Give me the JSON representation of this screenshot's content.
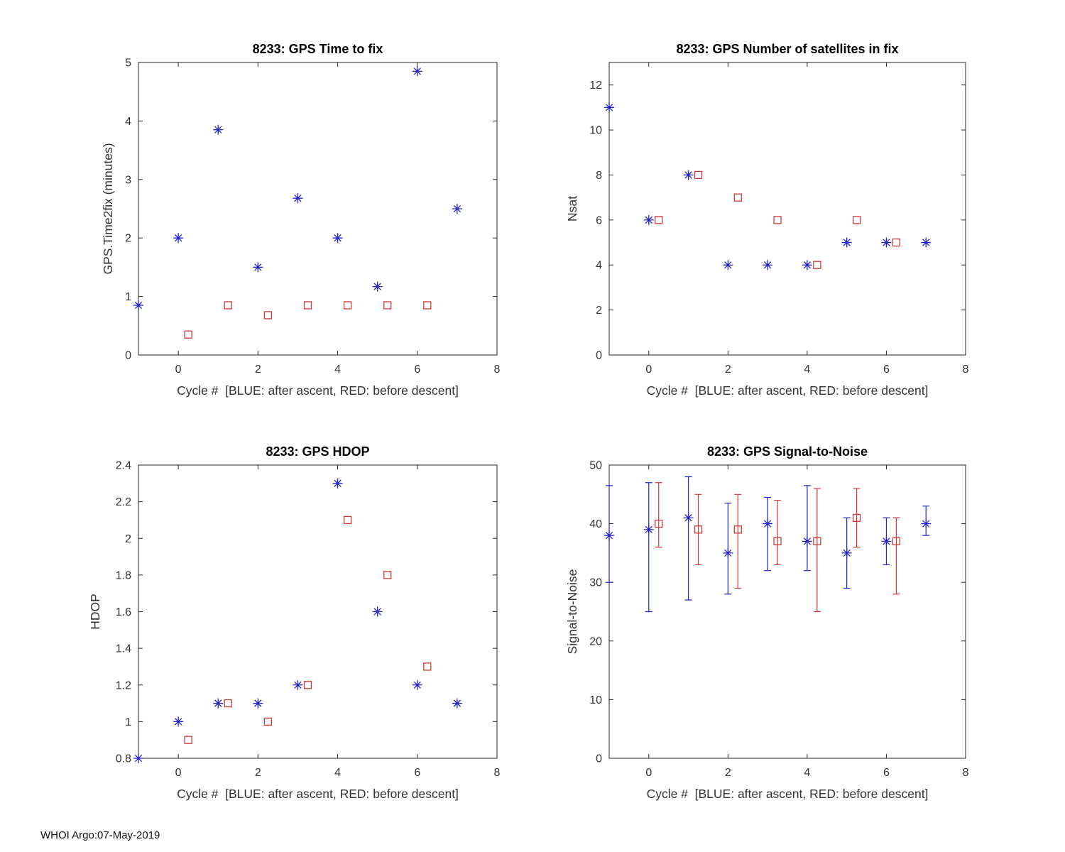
{
  "figure": {
    "footer": "WHOI Argo:07-May-2019",
    "background": "#ffffff"
  },
  "colors": {
    "blue": "#2222cc",
    "red": "#cc3a3a",
    "axis": "#262626",
    "tick_text": "#333333",
    "title_text": "#000000"
  },
  "chart_data": [
    {
      "id": "gps-time-to-fix",
      "type": "scatter",
      "title": "8233: GPS Time to fix",
      "xlabel": "Cycle #  [BLUE: after ascent, RED: before descent]",
      "ylabel": "GPS.Time2fix (minutes)",
      "xlim": [
        -1,
        8
      ],
      "ylim": [
        0,
        5
      ],
      "xticks": [
        0,
        2,
        4,
        6,
        8
      ],
      "xtick_labels": [
        "0",
        "2",
        "4",
        "6",
        "8"
      ],
      "yticks": [
        0,
        1,
        2,
        3,
        4,
        5
      ],
      "ytick_labels": [
        "0",
        "1",
        "2",
        "3",
        "4",
        "5"
      ],
      "grid": false,
      "series": [
        {
          "name": "after-ascent",
          "color_key": "blue",
          "marker": "asterisk",
          "x": [
            -1,
            0,
            1,
            2,
            3,
            4,
            5,
            6,
            7
          ],
          "y": [
            0.85,
            2.0,
            3.85,
            1.5,
            2.68,
            2.0,
            1.17,
            4.85,
            2.5
          ]
        },
        {
          "name": "before-descent",
          "color_key": "red",
          "marker": "square",
          "x": [
            0.25,
            1.25,
            2.25,
            3.25,
            4.25,
            5.25,
            6.25
          ],
          "y": [
            0.35,
            0.85,
            0.68,
            0.85,
            0.85,
            0.85,
            0.85
          ]
        }
      ]
    },
    {
      "id": "gps-satellites-in-fix",
      "type": "scatter",
      "title": "8233: GPS Number of satellites in fix",
      "xlabel": "Cycle #  [BLUE: after ascent, RED: before descent]",
      "ylabel": "Nsat",
      "xlim": [
        -1,
        8
      ],
      "ylim": [
        0,
        13
      ],
      "xticks": [
        0,
        2,
        4,
        6,
        8
      ],
      "xtick_labels": [
        "0",
        "2",
        "4",
        "6",
        "8"
      ],
      "yticks": [
        0,
        2,
        4,
        6,
        8,
        10,
        12
      ],
      "ytick_labels": [
        "0",
        "2",
        "4",
        "6",
        "8",
        "10",
        "12"
      ],
      "grid": false,
      "series": [
        {
          "name": "after-ascent",
          "color_key": "blue",
          "marker": "asterisk",
          "x": [
            -1,
            0,
            1,
            2,
            3,
            4,
            5,
            6,
            7
          ],
          "y": [
            11,
            6,
            8,
            4,
            4,
            4,
            5,
            5,
            5
          ]
        },
        {
          "name": "before-descent",
          "color_key": "red",
          "marker": "square",
          "x": [
            0.25,
            1.25,
            2.25,
            3.25,
            4.25,
            5.25,
            6.25
          ],
          "y": [
            6,
            8,
            7,
            6,
            4,
            6,
            5
          ]
        }
      ]
    },
    {
      "id": "gps-hdop",
      "type": "scatter",
      "title": "8233: GPS HDOP",
      "xlabel": "Cycle #  [BLUE: after ascent, RED: before descent]",
      "ylabel": "HDOP",
      "xlim": [
        -1,
        8
      ],
      "ylim": [
        0.8,
        2.4
      ],
      "xticks": [
        0,
        2,
        4,
        6,
        8
      ],
      "xtick_labels": [
        "0",
        "2",
        "4",
        "6",
        "8"
      ],
      "yticks": [
        0.8,
        1,
        1.2,
        1.4,
        1.6,
        1.8,
        2,
        2.2,
        2.4
      ],
      "ytick_labels": [
        "0.8",
        "1",
        "1.2",
        "1.4",
        "1.6",
        "1.8",
        "2",
        "2.2",
        "2.4"
      ],
      "grid": false,
      "series": [
        {
          "name": "after-ascent",
          "color_key": "blue",
          "marker": "asterisk",
          "x": [
            -1,
            0,
            1,
            2,
            3,
            4,
            5,
            6,
            7
          ],
          "y": [
            0.8,
            1.0,
            1.1,
            1.1,
            1.2,
            2.3,
            1.6,
            1.2,
            1.1
          ]
        },
        {
          "name": "before-descent",
          "color_key": "red",
          "marker": "square",
          "x": [
            0.25,
            1.25,
            2.25,
            3.25,
            4.25,
            5.25,
            6.25
          ],
          "y": [
            0.9,
            1.1,
            1.0,
            1.2,
            2.1,
            1.8,
            1.3
          ]
        }
      ]
    },
    {
      "id": "gps-signal-to-noise",
      "type": "errorbar-scatter",
      "title": "8233: GPS Signal-to-Noise",
      "xlabel": "Cycle #  [BLUE: after ascent, RED: before descent]",
      "ylabel": "Signal-to-Noise",
      "xlim": [
        -1,
        8
      ],
      "ylim": [
        0,
        50
      ],
      "xticks": [
        0,
        2,
        4,
        6,
        8
      ],
      "xtick_labels": [
        "0",
        "2",
        "4",
        "6",
        "8"
      ],
      "yticks": [
        0,
        10,
        20,
        30,
        40,
        50
      ],
      "ytick_labels": [
        "0",
        "10",
        "20",
        "30",
        "40",
        "50"
      ],
      "grid": false,
      "series": [
        {
          "name": "after-ascent",
          "color_key": "blue",
          "marker": "asterisk",
          "x": [
            -1,
            0,
            1,
            2,
            3,
            4,
            5,
            6,
            7
          ],
          "y": [
            38,
            39,
            41,
            35,
            40,
            37,
            35,
            37,
            40
          ],
          "err_lo": [
            30,
            25,
            27,
            28,
            32,
            32,
            29,
            33,
            38
          ],
          "err_hi": [
            46.5,
            47,
            48,
            43.5,
            44.5,
            46.5,
            41,
            41,
            43
          ]
        },
        {
          "name": "before-descent",
          "color_key": "red",
          "marker": "square",
          "x": [
            0.25,
            1.25,
            2.25,
            3.25,
            4.25,
            5.25,
            6.25
          ],
          "y": [
            40,
            39,
            39,
            37,
            37,
            41,
            37
          ],
          "err_lo": [
            36,
            33,
            29,
            33,
            25,
            36,
            28
          ],
          "err_hi": [
            47,
            45,
            45,
            44,
            46,
            46,
            41
          ]
        }
      ]
    }
  ]
}
